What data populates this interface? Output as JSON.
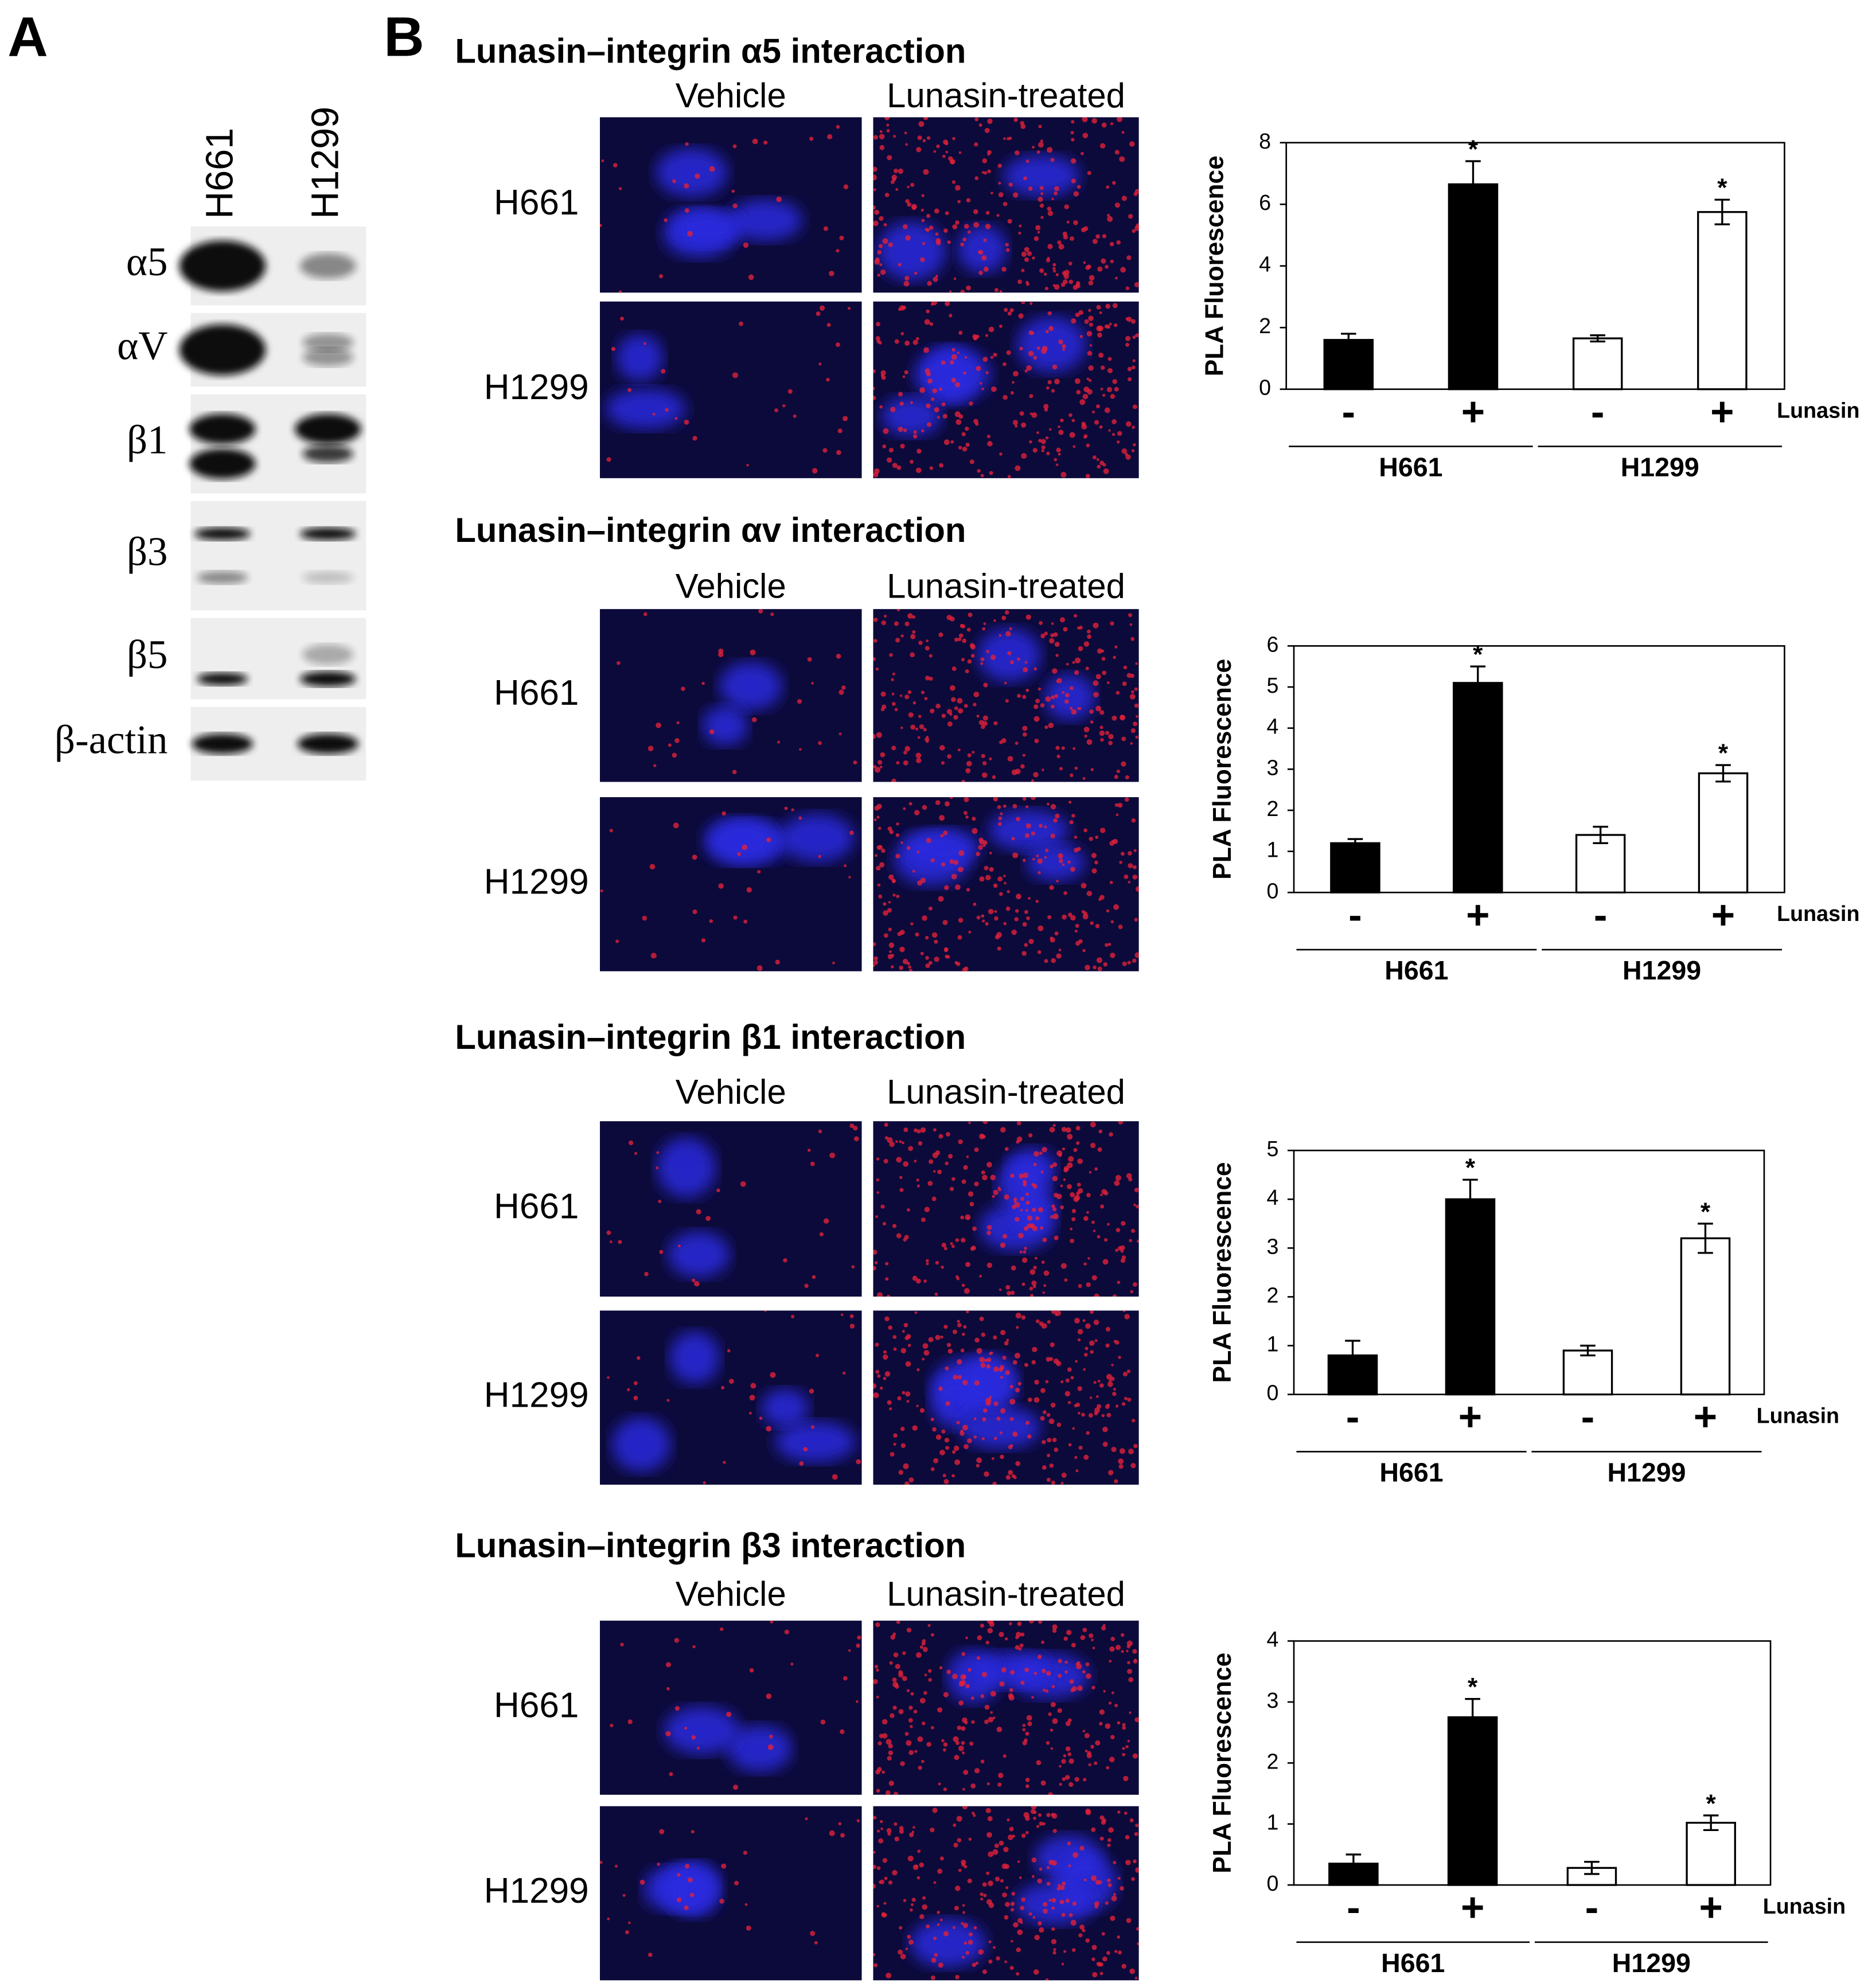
{
  "panel_a": {
    "label": "A",
    "columns": [
      "H661",
      "H1299"
    ],
    "rows": [
      "α5",
      "αV",
      "β1",
      "β3",
      "β5",
      "β-actin"
    ]
  },
  "panel_b": {
    "label": "B",
    "sections": [
      {
        "title": "Lunasin–integrin α5 interaction",
        "columns": [
          "Vehicle",
          "Lunasin-treated"
        ],
        "rows": [
          "H661",
          "H1299"
        ]
      },
      {
        "title": "Lunasin–integrin αv interaction",
        "columns": [
          "Vehicle",
          "Lunasin-treated"
        ],
        "rows": [
          "H661",
          "H1299"
        ]
      },
      {
        "title": "Lunasin–integrin β1 interaction",
        "columns": [
          "Vehicle",
          "Lunasin-treated"
        ],
        "rows": [
          "H661",
          "H1299"
        ]
      },
      {
        "title": "Lunasin–integrin β3 interaction",
        "columns": [
          "Vehicle",
          "Lunasin-treated"
        ],
        "rows": [
          "H661",
          "H1299"
        ]
      }
    ]
  },
  "chart_data": [
    {
      "type": "bar",
      "ylabel": "PLA Fluorescence",
      "categories": [
        "-",
        "+",
        "-",
        "+"
      ],
      "x_label": "Lunasin",
      "groups": [
        "H661",
        "H1299"
      ],
      "values": [
        1.6,
        6.65,
        1.65,
        5.75
      ],
      "errors": [
        0.2,
        0.75,
        0.1,
        0.4
      ],
      "colors": [
        "#000000",
        "#000000",
        "#ffffff",
        "#ffffff"
      ],
      "significance": [
        null,
        "*",
        null,
        "*"
      ],
      "ylim": [
        0,
        8
      ],
      "yticks": [
        0,
        2,
        4,
        6,
        8
      ]
    },
    {
      "type": "bar",
      "ylabel": "PLA Fluorescence",
      "categories": [
        "-",
        "+",
        "-",
        "+"
      ],
      "x_label": "Lunasin",
      "groups": [
        "H661",
        "H1299"
      ],
      "values": [
        1.2,
        5.1,
        1.4,
        2.9
      ],
      "errors": [
        0.1,
        0.4,
        0.2,
        0.2
      ],
      "colors": [
        "#000000",
        "#000000",
        "#ffffff",
        "#ffffff"
      ],
      "significance": [
        null,
        "*",
        null,
        "*"
      ],
      "ylim": [
        0,
        6
      ],
      "yticks": [
        0,
        1,
        2,
        3,
        4,
        5,
        6
      ]
    },
    {
      "type": "bar",
      "ylabel": "PLA Fluorescence",
      "categories": [
        "-",
        "+",
        "-",
        "+"
      ],
      "x_label": "Lunasin",
      "groups": [
        "H661",
        "H1299"
      ],
      "values": [
        0.8,
        4.0,
        0.9,
        3.2
      ],
      "errors": [
        0.3,
        0.4,
        0.1,
        0.3
      ],
      "colors": [
        "#000000",
        "#000000",
        "#ffffff",
        "#ffffff"
      ],
      "significance": [
        null,
        "*",
        null,
        "*"
      ],
      "ylim": [
        0,
        5
      ],
      "yticks": [
        0,
        1,
        2,
        3,
        4,
        5
      ]
    },
    {
      "type": "bar",
      "ylabel": "PLA Fluorescence",
      "categories": [
        "-",
        "+",
        "-",
        "+"
      ],
      "x_label": "Lunasin",
      "groups": [
        "H661",
        "H1299"
      ],
      "values": [
        0.35,
        2.75,
        0.28,
        1.02
      ],
      "errors": [
        0.15,
        0.3,
        0.1,
        0.12
      ],
      "colors": [
        "#000000",
        "#000000",
        "#ffffff",
        "#ffffff"
      ],
      "significance": [
        null,
        "*",
        null,
        "*"
      ],
      "ylim": [
        0,
        4
      ],
      "yticks": [
        0,
        1,
        2,
        3,
        4
      ]
    }
  ]
}
